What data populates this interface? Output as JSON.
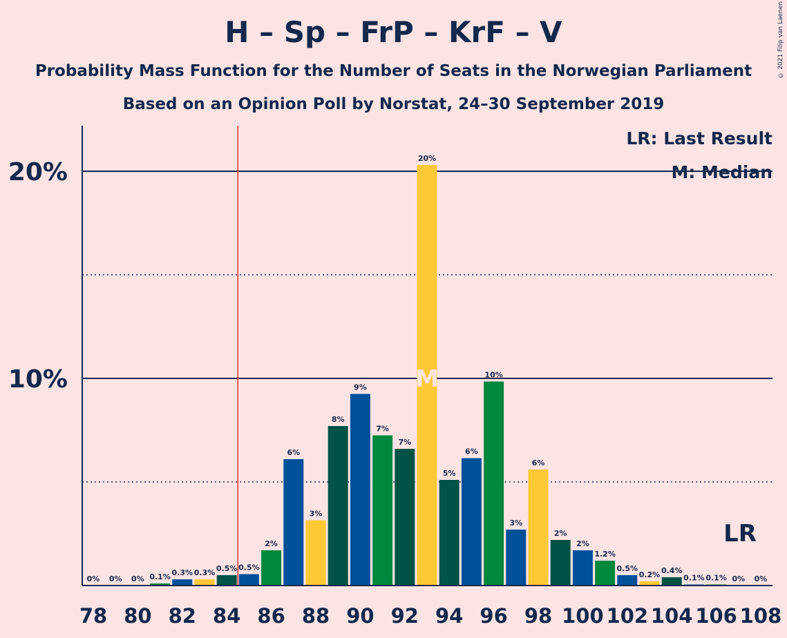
{
  "title": "H – Sp – FrP – KrF – V",
  "subtitle1": "Probability Mass Function for the Number of Seats in the Norwegian Parliament",
  "subtitle2": "Based on an Opinion Poll by Norstat, 24–30 September 2019",
  "copyright": "© 2021 Filip van Laenen",
  "legend": {
    "last_result": "LR: Last Result",
    "median": "M: Median"
  },
  "markers": {
    "last_result_label": "LR",
    "median_label": "M",
    "last_result_seat": 85,
    "median_seat": 93
  },
  "colors": {
    "background": "#fde4e4",
    "text": "#12284c",
    "last_result_line": "#e03030",
    "series": [
      "#005345",
      "#00509a",
      "#00883d",
      "#ffc836"
    ]
  },
  "chart_data": {
    "type": "bar",
    "x": [
      78,
      79,
      80,
      81,
      82,
      83,
      84,
      85,
      86,
      87,
      88,
      89,
      90,
      91,
      92,
      93,
      94,
      95,
      96,
      97,
      98,
      99,
      100,
      101,
      102,
      103,
      104,
      105,
      106,
      107,
      108
    ],
    "values": [
      0,
      0,
      0,
      0.1,
      0.3,
      0.3,
      0.5,
      0.55,
      1.7,
      6.1,
      3.15,
      7.7,
      9.25,
      7.25,
      6.6,
      20.3,
      5.1,
      6.15,
      9.85,
      2.7,
      5.6,
      2.2,
      1.7,
      1.2,
      0.5,
      0.2,
      0.4,
      0.05,
      0.05,
      0,
      0
    ],
    "labels": [
      "0%",
      "0%",
      "0%",
      "0.1%",
      "0.3%",
      "0.3%",
      "0.5%",
      "0.5%",
      "2%",
      "6%",
      "3%",
      "8%",
      "9%",
      "7%",
      "7%",
      "20%",
      "5%",
      "6%",
      "10%",
      "3%",
      "6%",
      "2%",
      "2%",
      "1.2%",
      "0.5%",
      "0.2%",
      "0.4%",
      "0.1%",
      "0.1%",
      "0%",
      "0%"
    ],
    "color_index": [
      1,
      2,
      3,
      2,
      1,
      3,
      0,
      1,
      2,
      1,
      3,
      0,
      1,
      2,
      0,
      3,
      0,
      1,
      2,
      1,
      3,
      0,
      1,
      2,
      1,
      3,
      0,
      1,
      2,
      1,
      3
    ],
    "x_tick_labels": [
      "78",
      "80",
      "82",
      "84",
      "86",
      "88",
      "90",
      "92",
      "94",
      "96",
      "98",
      "100",
      "102",
      "104",
      "106",
      "108"
    ],
    "y_tick_labels": [
      "10%",
      "20%"
    ],
    "y_ticks": [
      10,
      20
    ],
    "y_minor_ticks": [
      5,
      15
    ],
    "ylim": [
      0,
      22.2
    ],
    "grid": true
  }
}
